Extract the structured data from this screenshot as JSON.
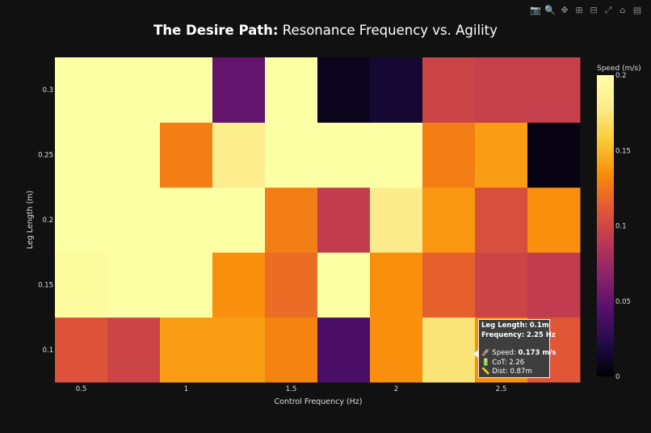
{
  "chart_data": {
    "type": "heatmap",
    "title_bold": "The Desire Path:",
    "title_rest": " Resonance Frequency vs. Agility",
    "xlabel": "Control Frequency (Hz)",
    "ylabel": "Leg Length (m)",
    "x": [
      0.5,
      0.75,
      1.0,
      1.25,
      1.5,
      1.75,
      2.0,
      2.25,
      2.5,
      2.75
    ],
    "y": [
      0.1,
      0.15,
      0.2,
      0.25,
      0.3
    ],
    "z": [
      [
        0.108,
        0.098,
        0.14,
        0.14,
        0.13,
        0.04,
        0.135,
        0.173,
        0.135,
        0.11
      ],
      [
        0.195,
        0.2,
        0.2,
        0.135,
        0.12,
        0.2,
        0.135,
        0.115,
        0.098,
        0.092
      ],
      [
        0.2,
        0.2,
        0.2,
        0.2,
        0.128,
        0.092,
        0.178,
        0.138,
        0.105,
        0.135
      ],
      [
        0.2,
        0.2,
        0.128,
        0.18,
        0.2,
        0.2,
        0.2,
        0.128,
        0.14,
        0.005
      ],
      [
        0.2,
        0.2,
        0.2,
        0.05,
        0.2,
        0.008,
        0.015,
        0.098,
        0.095,
        0.095
      ]
    ],
    "xticks": [
      "0.5",
      "1",
      "1.5",
      "2",
      "2.5"
    ],
    "xtick_values": [
      0.5,
      1.0,
      1.5,
      2.0,
      2.5
    ],
    "yticks": [
      "0.1",
      "0.15",
      "0.2",
      "0.25",
      "0.3"
    ],
    "colorbar": {
      "title": "Speed (m/s)",
      "range": [
        0,
        0.2
      ],
      "ticks": [
        "0",
        "0.05",
        "0.1",
        "0.15",
        "0.2"
      ],
      "tick_values": [
        0,
        0.05,
        0.1,
        0.15,
        0.2
      ]
    },
    "colorscale": "Inferno",
    "legend": "none"
  },
  "tooltip": {
    "leg_label": "Leg Length:",
    "leg_value": "0.1m",
    "freq_label": "Frequency:",
    "freq_value": "2.25 Hz",
    "speed_icon": "🚀",
    "speed_label": "Speed: ",
    "speed_value": "0.173 m/s",
    "cot_icon": "🔋",
    "cot_label": "CoT: ",
    "cot_value": "2.26",
    "dist_icon": "📏",
    "dist_label": "Dist: ",
    "dist_value": "0.87m"
  },
  "modebar": {
    "icons": [
      "camera-icon",
      "zoom-icon",
      "pan-icon",
      "zoom-in-icon",
      "zoom-out-icon",
      "autoscale-icon",
      "reset-axes-icon",
      "plotly-logo-icon"
    ],
    "glyphs": [
      "📷",
      "🔍",
      "✥",
      "⊞",
      "⊟",
      "⤢",
      "⌂",
      "▤"
    ]
  },
  "colors": {
    "background": "#111111",
    "text": "#dddddd",
    "tooltip_bg": "#3e3e3e"
  }
}
